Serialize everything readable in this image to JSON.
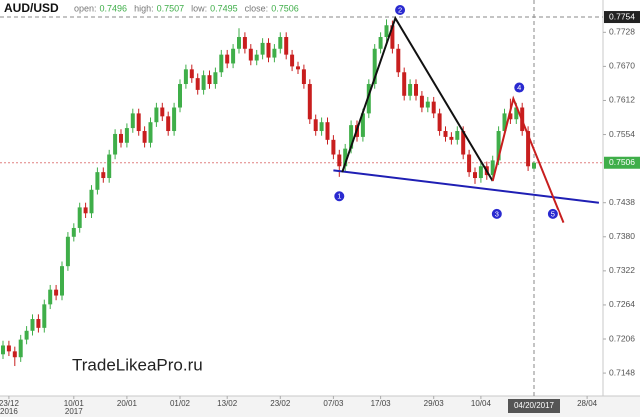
{
  "chart_data": {
    "type": "candlestick",
    "title": "AUD/USD",
    "header_fields": [
      {
        "label": "open:",
        "value": 0.7496
      },
      {
        "label": "high:",
        "value": 0.7507
      },
      {
        "label": "low:",
        "value": 0.7495
      },
      {
        "label": "close:",
        "value": 0.7506
      }
    ],
    "watermark": "TradeLikeaPro.ru",
    "up_color": "#3fae49",
    "down_color": "#c81e1e",
    "ylim": [
      0.7109,
      0.7783
    ],
    "yticks": [
      0.7148,
      0.7206,
      0.7264,
      0.7322,
      {
        "value": 0.738,
        "label": "0.7380"
      },
      0.7438,
      0.7554,
      0.7612,
      {
        "value": 0.767,
        "label": "0.7670"
      },
      0.7728
    ],
    "last_price": 0.7506,
    "crosshair": {
      "date": "04/20/2017",
      "price": 0.7754
    },
    "categories": [
      null,
      "23/12",
      null,
      null,
      null,
      null,
      null,
      null,
      null,
      null,
      null,
      null,
      "10/01",
      null,
      null,
      null,
      null,
      null,
      null,
      null,
      null,
      "20/01",
      null,
      null,
      null,
      null,
      null,
      null,
      null,
      null,
      "01/02",
      null,
      null,
      null,
      null,
      null,
      null,
      null,
      "13/02",
      null,
      null,
      null,
      null,
      null,
      null,
      null,
      null,
      "23/02",
      null,
      null,
      null,
      null,
      null,
      null,
      null,
      null,
      "07/03",
      null,
      null,
      null,
      null,
      null,
      null,
      null,
      "17/03",
      null,
      null,
      null,
      null,
      null,
      null,
      null,
      null,
      "29/03",
      null,
      null,
      null,
      null,
      null,
      null,
      null,
      "10/04",
      null,
      null,
      null,
      null,
      null,
      null,
      null,
      null,
      null,
      null,
      null,
      null,
      null,
      null,
      null,
      null,
      null,
      "28/04"
    ],
    "category_years": [
      null,
      "2016",
      null,
      null,
      null,
      null,
      null,
      null,
      null,
      null,
      null,
      null,
      "2017",
      null,
      null,
      null,
      null,
      null,
      null,
      null,
      null,
      null,
      null,
      null,
      null,
      null,
      null,
      null,
      null,
      null,
      null,
      null,
      null,
      null,
      null,
      null,
      null,
      null,
      null,
      null,
      null,
      null,
      null,
      null,
      null,
      null,
      null,
      null,
      null,
      null,
      null,
      null,
      null,
      null,
      null,
      null,
      null,
      null,
      null,
      null,
      null,
      null,
      null,
      null,
      null,
      null,
      null,
      null,
      null,
      null,
      null,
      null,
      null,
      null,
      null,
      null,
      null,
      null,
      null,
      null,
      null,
      null,
      null,
      null,
      null,
      null,
      null,
      null,
      null,
      null,
      null,
      null,
      null,
      null,
      null,
      null,
      null,
      null,
      null,
      null
    ],
    "open": [
      0.718,
      0.7195,
      0.7185,
      0.7175,
      0.7205,
      0.722,
      0.724,
      0.7225,
      0.7265,
      0.729,
      0.728,
      0.733,
      0.738,
      0.7395,
      0.743,
      0.742,
      0.746,
      0.749,
      0.748,
      0.752,
      0.7555,
      0.754,
      0.7565,
      0.759,
      0.756,
      0.754,
      0.7575,
      0.76,
      0.7585,
      0.756,
      0.76,
      0.764,
      0.7665,
      0.765,
      0.763,
      0.7655,
      0.764,
      0.766,
      0.769,
      0.7675,
      0.77,
      0.772,
      0.77,
      0.768,
      0.769,
      0.771,
      0.7685,
      0.77,
      0.772,
      0.769,
      0.767,
      0.7665,
      0.764,
      0.758,
      0.756,
      0.7575,
      0.7545,
      0.752,
      0.75,
      0.753,
      0.757,
      0.755,
      0.759,
      0.764,
      0.77,
      0.772,
      0.774,
      0.77,
      0.766,
      0.762,
      0.764,
      0.762,
      0.76,
      0.761,
      0.759,
      0.756,
      0.755,
      0.7545,
      0.756,
      0.752,
      0.749,
      0.748,
      0.75,
      0.7485,
      0.751,
      0.756,
      0.759,
      0.758,
      0.76,
      0.756,
      0.7496,
      null,
      null,
      null,
      null,
      null,
      null,
      null,
      null,
      null
    ],
    "high": [
      0.7203,
      0.7203,
      0.7193,
      0.7213,
      0.7228,
      0.7248,
      0.7248,
      0.7273,
      0.7298,
      0.7298,
      0.7338,
      0.7388,
      0.7403,
      0.7438,
      0.7438,
      0.7468,
      0.7498,
      0.7498,
      0.7528,
      0.7563,
      0.7563,
      0.7573,
      0.7598,
      0.7598,
      0.7568,
      0.7583,
      0.7608,
      0.7608,
      0.7593,
      0.7608,
      0.7648,
      0.7673,
      0.7673,
      0.7658,
      0.7663,
      0.7663,
      0.7668,
      0.7698,
      0.7698,
      0.7708,
      0.7735,
      0.7728,
      0.7708,
      0.7698,
      0.7718,
      0.7718,
      0.7708,
      0.7728,
      0.7728,
      0.7698,
      0.7678,
      0.7673,
      0.7648,
      0.7588,
      0.7583,
      0.7583,
      0.7553,
      0.7528,
      0.7538,
      0.7578,
      0.7578,
      0.7598,
      0.7648,
      0.7708,
      0.7728,
      0.775,
      0.7748,
      0.7708,
      0.7668,
      0.7648,
      0.7648,
      0.7628,
      0.7618,
      0.7618,
      0.7598,
      0.7568,
      0.7558,
      0.7568,
      0.7568,
      0.7528,
      0.7498,
      0.7508,
      0.7508,
      0.7518,
      0.7568,
      0.7598,
      0.7615,
      0.7608,
      0.7608,
      0.7568,
      0.7507,
      null,
      null,
      null,
      null,
      null,
      null,
      null,
      null,
      null
    ],
    "low": [
      0.7172,
      0.7177,
      0.716,
      0.7167,
      0.7197,
      0.7212,
      0.7217,
      0.7217,
      0.7257,
      0.7272,
      0.7272,
      0.7322,
      0.7372,
      0.7387,
      0.7412,
      0.7412,
      0.7452,
      0.7472,
      0.7472,
      0.7512,
      0.7532,
      0.7532,
      0.7557,
      0.7552,
      0.7532,
      0.7532,
      0.7567,
      0.7577,
      0.7552,
      0.7552,
      0.7592,
      0.7632,
      0.7642,
      0.7622,
      0.7622,
      0.7632,
      0.7632,
      0.7652,
      0.7667,
      0.7667,
      0.7692,
      0.7692,
      0.7672,
      0.7672,
      0.7682,
      0.7677,
      0.7677,
      0.7692,
      0.7682,
      0.7662,
      0.7657,
      0.7632,
      0.7572,
      0.7552,
      0.7552,
      0.7537,
      0.7512,
      0.7482,
      0.7492,
      0.7522,
      0.7542,
      0.7542,
      0.7582,
      0.7632,
      0.7692,
      0.7712,
      0.7692,
      0.7652,
      0.7612,
      0.7612,
      0.7612,
      0.7592,
      0.7592,
      0.7582,
      0.7552,
      0.7542,
      0.7537,
      0.7537,
      0.7512,
      0.7482,
      0.747,
      0.7472,
      0.7477,
      0.7477,
      0.7502,
      0.7552,
      0.7572,
      0.7572,
      0.7552,
      0.7492,
      0.7495,
      null,
      null,
      null,
      null,
      null,
      null,
      null,
      null,
      null
    ],
    "close": [
      0.7195,
      0.7185,
      0.7175,
      0.7205,
      0.722,
      0.724,
      0.7225,
      0.7265,
      0.729,
      0.728,
      0.733,
      0.738,
      0.7395,
      0.743,
      0.742,
      0.746,
      0.749,
      0.748,
      0.752,
      0.7555,
      0.754,
      0.7565,
      0.759,
      0.756,
      0.754,
      0.7575,
      0.76,
      0.7585,
      0.756,
      0.76,
      0.764,
      0.7665,
      0.765,
      0.763,
      0.7655,
      0.764,
      0.766,
      0.769,
      0.7675,
      0.77,
      0.772,
      0.77,
      0.768,
      0.769,
      0.771,
      0.7685,
      0.77,
      0.772,
      0.769,
      0.767,
      0.7665,
      0.764,
      0.758,
      0.756,
      0.7575,
      0.7545,
      0.752,
      0.75,
      0.753,
      0.757,
      0.755,
      0.759,
      0.764,
      0.77,
      0.772,
      0.774,
      0.77,
      0.766,
      0.762,
      0.764,
      0.762,
      0.76,
      0.761,
      0.759,
      0.756,
      0.755,
      0.7545,
      0.756,
      0.752,
      0.749,
      0.748,
      0.75,
      0.7485,
      0.751,
      0.756,
      0.759,
      0.758,
      0.76,
      0.756,
      0.75,
      0.7506,
      null,
      null,
      null,
      null,
      null,
      null,
      null,
      null,
      null
    ],
    "pattern_lines": [
      {
        "color": "#1f1fb4",
        "points": [
          [
            56,
            0.7493
          ],
          [
            101,
            0.7438
          ]
        ]
      },
      {
        "color": "#111111",
        "points": [
          [
            57.5,
            0.749
          ],
          [
            66.5,
            0.7752
          ],
          [
            83,
            0.7475
          ]
        ]
      },
      {
        "color": "#c81e1e",
        "points": [
          [
            83,
            0.7475
          ],
          [
            86.5,
            0.7615
          ],
          [
            95,
            0.7404
          ]
        ]
      }
    ],
    "markers": [
      {
        "label": "1",
        "x": 57,
        "y": 0.7449
      },
      {
        "label": "2",
        "x": 67.3,
        "y": 0.7766
      },
      {
        "label": "3",
        "x": 83.7,
        "y": 0.7419
      },
      {
        "label": "4",
        "x": 87.5,
        "y": 0.7634
      },
      {
        "label": "5",
        "x": 93.2,
        "y": 0.7419
      }
    ]
  }
}
